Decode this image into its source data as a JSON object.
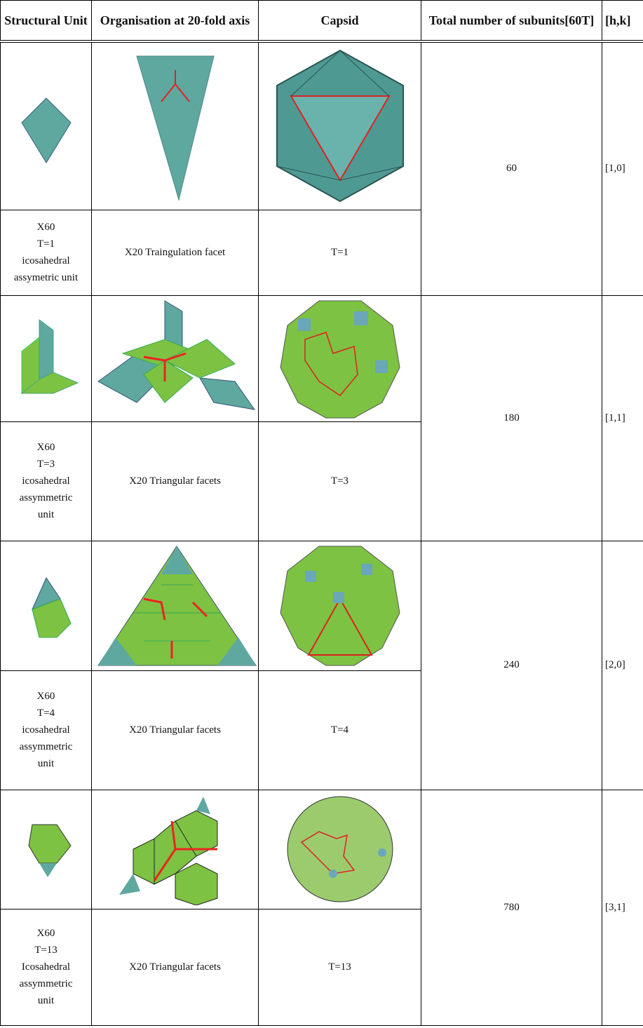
{
  "table": {
    "header": [
      "Structural Unit",
      "Organisation at 20-fold axis",
      "Capsid",
      "Total number of subunits[60T]",
      "[h,k]"
    ],
    "rows": [
      {
        "structural_unit": [
          "X60",
          "T=1",
          "icosahedral",
          "assymetric unit"
        ],
        "organisation": "X20 Traingulation facet",
        "capsid": "T=1",
        "total": "60",
        "hk": "[1,0]"
      },
      {
        "structural_unit": [
          "X60",
          "T=3",
          "icosahedral",
          "assymmetric",
          "unit"
        ],
        "organisation": "X20 Triangular facets",
        "capsid": "T=3",
        "total": "180",
        "hk": "[1,1]"
      },
      {
        "structural_unit": [
          "X60",
          "T=4",
          "icosahedral",
          "assymmetric",
          "unit"
        ],
        "organisation": "X20 Triangular facets",
        "capsid": "T=4",
        "total": "240",
        "hk": "[2,0]"
      },
      {
        "structural_unit": [
          "X60",
          "T=13",
          "Icosahedral",
          "assymmetric",
          "unit"
        ],
        "organisation": "X20 Triangular facets",
        "capsid": "T=13",
        "total": "780",
        "hk": "[3,1]"
      }
    ]
  }
}
